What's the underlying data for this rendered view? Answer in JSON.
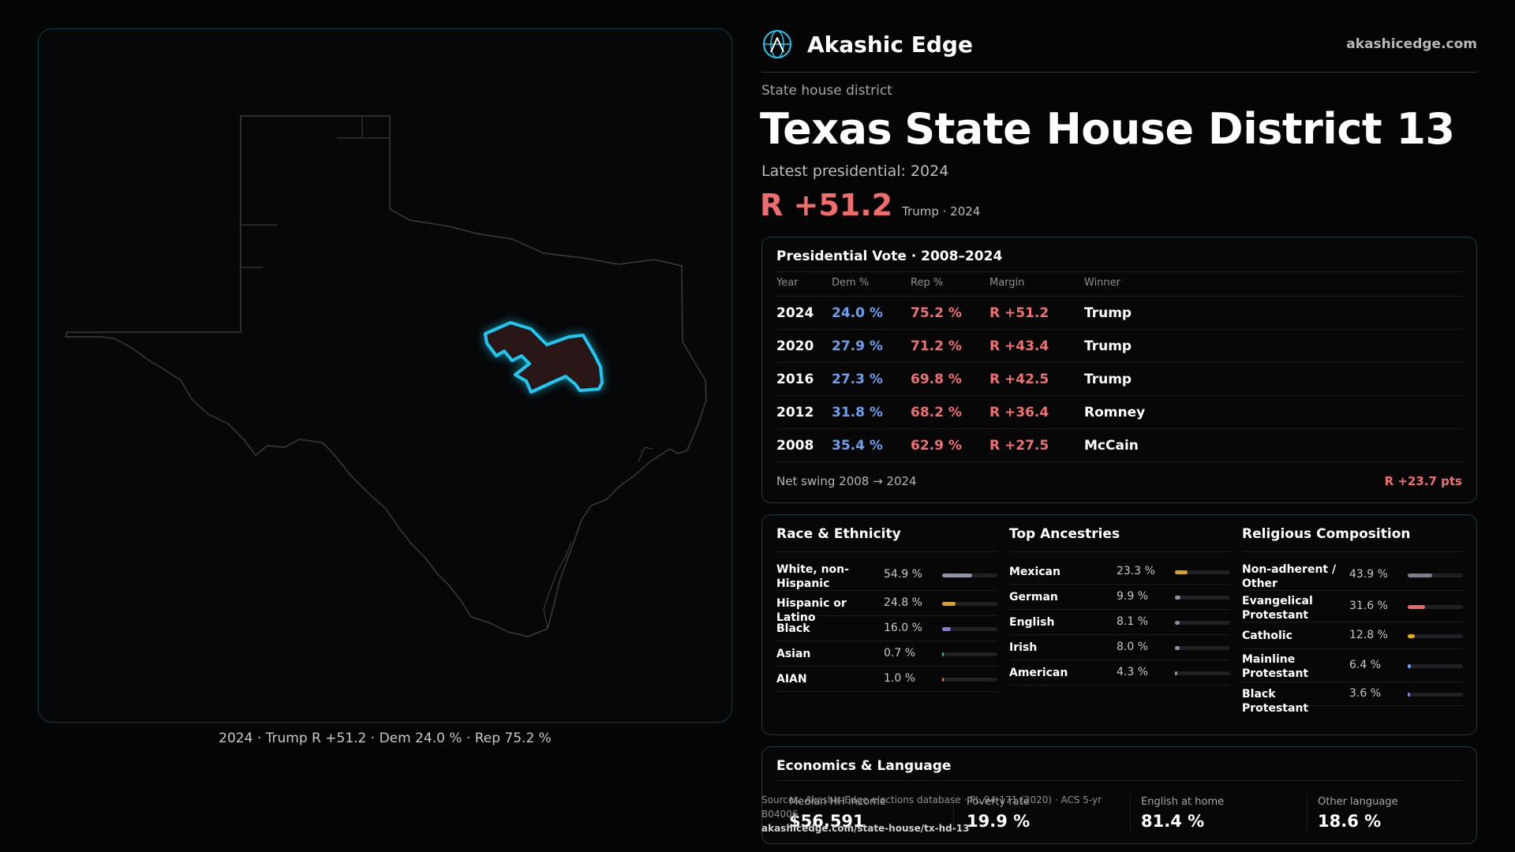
{
  "brand": {
    "name": "Akashic Edge",
    "url": "akashicedge.com",
    "logo_icon": "globe-logo-icon"
  },
  "district": {
    "kicker": "State house district",
    "title_state": "Texas",
    "title_name": "State House District 13",
    "latest_label": "Latest presidential: 2024",
    "margin": "R +51.2",
    "margin_sub": "Trump · 2024"
  },
  "map": {
    "caption": "2024 · Trump R +51.2 · Dem 24.0 % · Rep 75.2 %",
    "highlight_color": "#1ec8f0",
    "state_outline_color": "#3a3a3a"
  },
  "presidential": {
    "title": "Presidential Vote · 2008–2024",
    "headers": [
      "Year",
      "Dem %",
      "Rep %",
      "Margin",
      "Winner"
    ],
    "rows": [
      [
        "2024",
        "24.0 %",
        "75.2 %",
        "R +51.2",
        "Trump"
      ],
      [
        "2020",
        "27.9 %",
        "71.2 %",
        "R +43.4",
        "Trump"
      ],
      [
        "2016",
        "27.3 %",
        "69.8 %",
        "R +42.5",
        "Trump"
      ],
      [
        "2012",
        "31.8 %",
        "68.2 %",
        "R +36.4",
        "Romney"
      ],
      [
        "2008",
        "35.4 %",
        "62.9 %",
        "R +27.5",
        "McCain"
      ]
    ],
    "net_swing_label": "Net swing 2008 → 2024",
    "net_swing_value": "R +23.7 pts"
  },
  "race": {
    "title": "Race & Ethnicity",
    "items": [
      {
        "label": "White, non-Hispanic",
        "pct": "54.9 %",
        "value": 54.9,
        "color": "#8a93a8"
      },
      {
        "label": "Hispanic or Latino",
        "pct": "24.8 %",
        "value": 24.8,
        "color": "#e0a020"
      },
      {
        "label": "Black",
        "pct": "16.0 %",
        "value": 16.0,
        "color": "#8a7ae0"
      },
      {
        "label": "Asian",
        "pct": "0.7 %",
        "value": 0.7,
        "color": "#20c0a0"
      },
      {
        "label": "AIAN",
        "pct": "1.0 %",
        "value": 1.0,
        "color": "#e07040"
      }
    ]
  },
  "ancestry": {
    "title": "Top Ancestries",
    "items": [
      {
        "label": "Mexican",
        "pct": "23.3 %",
        "value": 23.3,
        "color": "#e0a020"
      },
      {
        "label": "German",
        "pct": "9.9 %",
        "value": 9.9,
        "color": "#8a93a8"
      },
      {
        "label": "English",
        "pct": "8.1 %",
        "value": 8.1,
        "color": "#8a93a8"
      },
      {
        "label": "Irish",
        "pct": "8.0 %",
        "value": 8.0,
        "color": "#8a93a8"
      },
      {
        "label": "American",
        "pct": "4.3 %",
        "value": 4.3,
        "color": "#8a93a8"
      }
    ]
  },
  "religion": {
    "title": "Religious Composition",
    "items": [
      {
        "label": "Non-adherent / Other",
        "pct": "43.9 %",
        "value": 43.9,
        "color": "#7a7f8e"
      },
      {
        "label": "Evangelical Protestant",
        "pct": "31.6 %",
        "value": 31.6,
        "color": "#e86a6a"
      },
      {
        "label": "Catholic",
        "pct": "12.8 %",
        "value": 12.8,
        "color": "#e0b020"
      },
      {
        "label": "Mainline Protestant",
        "pct": "6.4 %",
        "value": 6.4,
        "color": "#6aa0f0"
      },
      {
        "label": "Black Protestant",
        "pct": "3.6 %",
        "value": 3.6,
        "color": "#8a7ae0"
      }
    ]
  },
  "economics": {
    "title": "Economics & Language",
    "stats": [
      {
        "label": "Median HH income",
        "value": "$56,591"
      },
      {
        "label": "Poverty rate",
        "value": "19.9 %"
      },
      {
        "label": "English at home",
        "value": "81.4 %"
      },
      {
        "label": "Other language",
        "value": "18.6 %"
      }
    ]
  },
  "sources": {
    "text": "Sources: Akashic Edge elections database · PL 94-171 (2020) · ACS 5-yr B04006",
    "url": "akashicedge.com/state-house/tx-hd-13"
  }
}
